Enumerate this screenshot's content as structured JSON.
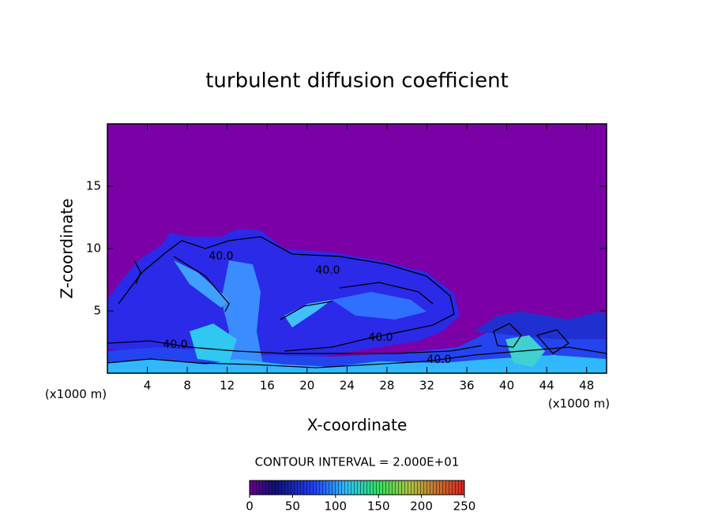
{
  "chart_data": {
    "type": "contour",
    "title": "turbulent diffusion coefficient",
    "xlabel": "X-coordinate",
    "ylabel": "Z-coordinate",
    "xunit": "(x1000 m)",
    "yunit": "(x1000 m)",
    "xlim": [
      0,
      50
    ],
    "xticks": [
      4,
      8,
      12,
      16,
      20,
      24,
      28,
      32,
      36,
      40,
      44,
      48
    ],
    "ylim": [
      0,
      20
    ],
    "yticks": [
      5,
      10,
      15
    ],
    "contour_labels": [
      "40.0",
      "40.0",
      "40.0",
      "40.0",
      "40.0"
    ],
    "contour_interval": "CONTOUR INTERVAL = 2.000E+01",
    "colorbar": {
      "lim": [
        0,
        250
      ],
      "ticks": [
        0,
        50,
        100,
        150,
        200,
        250
      ]
    }
  }
}
